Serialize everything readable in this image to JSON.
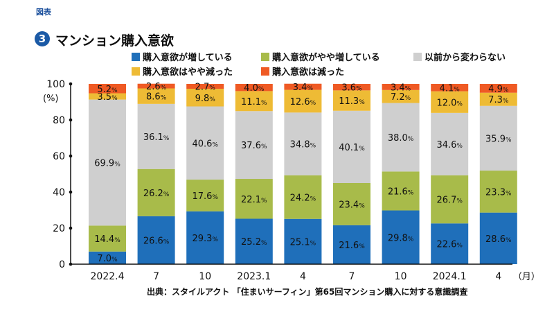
{
  "header": {
    "tag": "図表",
    "figure_number": "3",
    "title": "マンション購入意欲"
  },
  "chart_data": {
    "type": "bar",
    "stacked": true,
    "title": "マンション購入意欲",
    "categories": [
      "2022.4",
      "7",
      "10",
      "2023.1",
      "4",
      "7",
      "10",
      "2024.1",
      "4"
    ],
    "x_unit_label": "（月）",
    "y_unit_label": "(%)",
    "ylim": [
      0,
      100
    ],
    "yticks": [
      0,
      20,
      40,
      60,
      80,
      100
    ],
    "grid": false,
    "legend_position": "top",
    "series": [
      {
        "name": "購入意欲が増している",
        "color": "#1f6fba",
        "values": [
          7.0,
          26.6,
          29.3,
          25.2,
          25.1,
          21.6,
          29.8,
          22.6,
          28.6
        ]
      },
      {
        "name": "購入意欲がやや増している",
        "color": "#a8bb4a",
        "values": [
          14.4,
          26.2,
          17.6,
          22.1,
          24.2,
          23.4,
          21.6,
          26.7,
          23.3
        ]
      },
      {
        "name": "以前から変わらない",
        "color": "#cfcfcf",
        "values": [
          69.9,
          36.1,
          40.6,
          37.6,
          34.8,
          40.1,
          38.0,
          34.6,
          35.9
        ]
      },
      {
        "name": "購入意欲はやや減った",
        "color": "#eebb35",
        "values": [
          3.5,
          8.6,
          9.8,
          11.1,
          12.6,
          11.3,
          7.2,
          12.0,
          7.3
        ]
      },
      {
        "name": "購入意欲は減った",
        "color": "#ef5a24",
        "values": [
          5.2,
          2.6,
          2.7,
          4.0,
          3.4,
          3.6,
          3.4,
          4.1,
          4.9
        ]
      }
    ],
    "source": "出典：スタイルアクト 「住まいサーフィン」第65回マンション購入に対する意識調査"
  }
}
